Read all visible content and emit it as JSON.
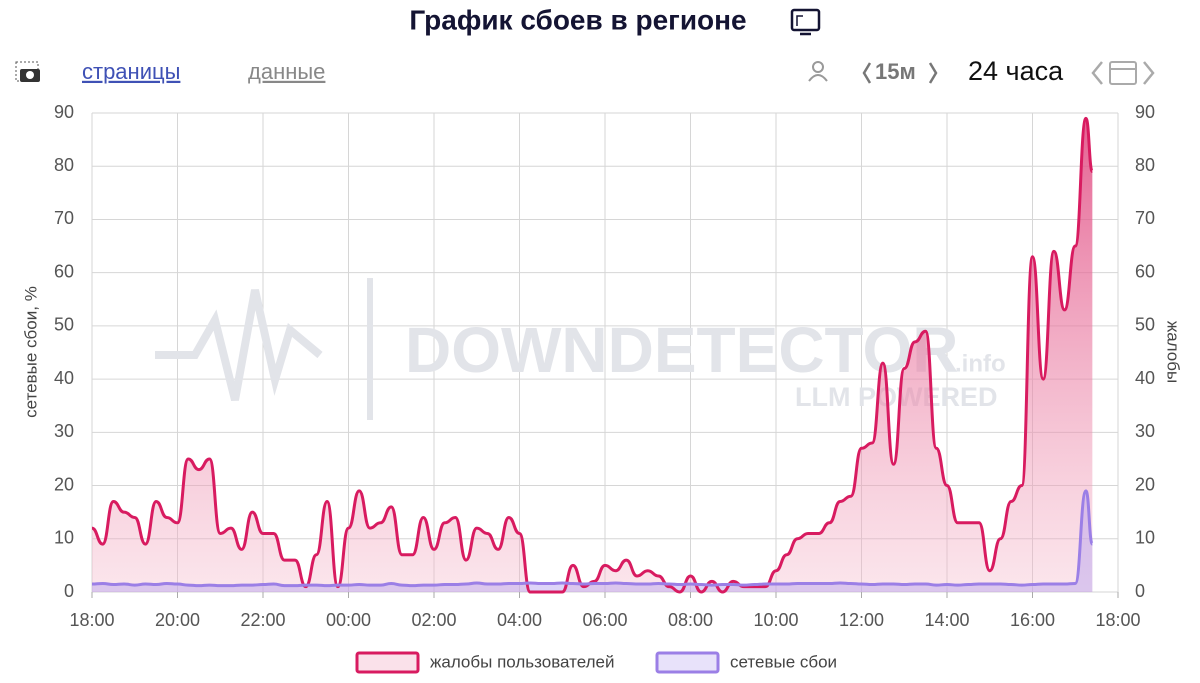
{
  "toolbar": {
    "tab_pages": "страницы",
    "tab_data": "данные",
    "interval": "15м",
    "period": "24 часа"
  },
  "chart_data": {
    "type": "area",
    "title": "График сбоев в регионе",
    "y_label": "сетевые сбои, %",
    "y2_label": "жалобы",
    "watermark": {
      "brand": "DOWNDETECTOR",
      "suffix": ".info",
      "tagline": "LLM POWERED"
    },
    "x": [
      18,
      18.25,
      18.5,
      18.75,
      19,
      19.25,
      19.5,
      19.75,
      20,
      20.25,
      20.5,
      20.75,
      21,
      21.25,
      21.5,
      21.75,
      22,
      22.25,
      22.5,
      22.75,
      23,
      23.25,
      23.5,
      23.75,
      24,
      24.25,
      24.5,
      24.75,
      25,
      25.25,
      25.5,
      25.75,
      26,
      26.25,
      26.5,
      26.75,
      27,
      27.25,
      27.5,
      27.75,
      28,
      28.25,
      28.5,
      28.75,
      29,
      29.25,
      29.5,
      29.75,
      30,
      30.25,
      30.5,
      30.75,
      31,
      31.25,
      31.5,
      31.75,
      32,
      32.25,
      32.5,
      32.75,
      33,
      33.25,
      33.5,
      33.75,
      34,
      34.25,
      34.5,
      34.75,
      35,
      35.25,
      35.5,
      35.75,
      36,
      36.25,
      36.5,
      36.75,
      37,
      37.25,
      37.5,
      37.75,
      38,
      38.25,
      38.5,
      38.75,
      39,
      39.25,
      39.5,
      39.75,
      40,
      40.25,
      40.5,
      40.75,
      41,
      41.25,
      41.4
    ],
    "xlim": [
      18,
      42
    ],
    "xticks": [
      {
        "value": 18,
        "label": "18:00"
      },
      {
        "value": 20,
        "label": "20:00"
      },
      {
        "value": 22,
        "label": "22:00"
      },
      {
        "value": 24,
        "label": "00:00"
      },
      {
        "value": 26,
        "label": "02:00"
      },
      {
        "value": 28,
        "label": "04:00"
      },
      {
        "value": 30,
        "label": "06:00"
      },
      {
        "value": 32,
        "label": "08:00"
      },
      {
        "value": 34,
        "label": "10:00"
      },
      {
        "value": 36,
        "label": "12:00"
      },
      {
        "value": 38,
        "label": "14:00"
      },
      {
        "value": 40,
        "label": "16:00"
      },
      {
        "value": 42,
        "label": "18:00"
      }
    ],
    "ylim": [
      0,
      90
    ],
    "yticks": [
      0,
      10,
      20,
      30,
      40,
      50,
      60,
      70,
      80,
      90
    ],
    "y2lim": [
      0,
      90
    ],
    "y2ticks": [
      0,
      10,
      20,
      30,
      40,
      50,
      60,
      70,
      80,
      90
    ],
    "grid": true,
    "legend": "bottom",
    "series": [
      {
        "name": "жалобы пользователей",
        "color": "#d81b60",
        "axis": "y2",
        "values": [
          12,
          9,
          17,
          15,
          14,
          9,
          17,
          14,
          13,
          25,
          23,
          25,
          11,
          12,
          8,
          15,
          11,
          11,
          6,
          6,
          1,
          7,
          17,
          1,
          12,
          19,
          12,
          13,
          16,
          7,
          7,
          14,
          8,
          13,
          14,
          6,
          12,
          11,
          8,
          14,
          11,
          0,
          0,
          0,
          0,
          5,
          1,
          2,
          5,
          4,
          6,
          3,
          4,
          3,
          1,
          0,
          3,
          0,
          2,
          0,
          2,
          1,
          1,
          1,
          4,
          7,
          10,
          11,
          11,
          13,
          17,
          18,
          27,
          28,
          43,
          24,
          42,
          47,
          49,
          27,
          20,
          13,
          13,
          13,
          4,
          10,
          17,
          20,
          63,
          40,
          64,
          53,
          65,
          89,
          79
        ]
      },
      {
        "name": "сетевые сбои",
        "color": "#9b7fe6",
        "values": [
          1.5,
          1.6,
          1.4,
          1.5,
          1.3,
          1.5,
          1.4,
          1.6,
          1.5,
          1.3,
          1.2,
          1.3,
          1.2,
          1.2,
          1.3,
          1.3,
          1.4,
          1.5,
          1.2,
          1.2,
          1.3,
          1.3,
          1.2,
          1.3,
          1.3,
          1.4,
          1.3,
          1.3,
          1.6,
          1.3,
          1.2,
          1.3,
          1.3,
          1.4,
          1.4,
          1.5,
          1.7,
          1.5,
          1.5,
          1.6,
          1.6,
          1.7,
          1.6,
          1.6,
          1.7,
          1.6,
          1.5,
          1.6,
          1.6,
          1.7,
          1.6,
          1.5,
          1.5,
          1.6,
          1.5,
          1.4,
          1.5,
          1.4,
          1.3,
          1.4,
          1.4,
          1.3,
          1.4,
          1.5,
          1.5,
          1.5,
          1.6,
          1.6,
          1.6,
          1.6,
          1.7,
          1.6,
          1.5,
          1.4,
          1.5,
          1.5,
          1.4,
          1.5,
          1.5,
          1.3,
          1.4,
          1.3,
          1.4,
          1.5,
          1.5,
          1.5,
          1.4,
          1.3,
          1.4,
          1.5,
          1.5,
          1.5,
          1.6,
          19,
          9
        ]
      }
    ]
  }
}
